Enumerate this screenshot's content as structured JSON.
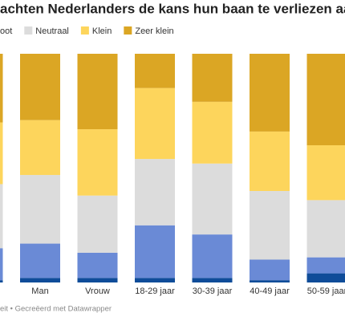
{
  "chart_data": {
    "type": "stacked_bar_100",
    "title": "achten Nederlanders de kans hun baan te verliezen aan AI?",
    "footer": "eit • Gecreëerd met Datawrapper",
    "categories": [
      null,
      "Man",
      "Vrouw",
      "18-29 jaar",
      "30-39 jaar",
      "40-49 jaar",
      "50-59 jaar"
    ],
    "ylim": [
      0,
      100
    ],
    "series": [
      {
        "color": "#0f4c99",
        "values": [
          1,
          2,
          2,
          2,
          2,
          1,
          4
        ]
      },
      {
        "name": "oot",
        "color": "#6a8ad6",
        "values": [
          14,
          15,
          11,
          23,
          19,
          9,
          7
        ]
      },
      {
        "name": "Neutraal",
        "color": "#dcdcdc",
        "values": [
          28,
          30,
          25,
          29,
          31,
          30,
          25
        ]
      },
      {
        "name": "Klein",
        "color": "#fdd55c",
        "values": [
          27,
          24,
          29,
          31,
          27,
          26,
          24
        ]
      },
      {
        "name": "Zeer klein",
        "color": "#dba624",
        "values": [
          30,
          29,
          33,
          15,
          21,
          34,
          40
        ]
      }
    ]
  }
}
